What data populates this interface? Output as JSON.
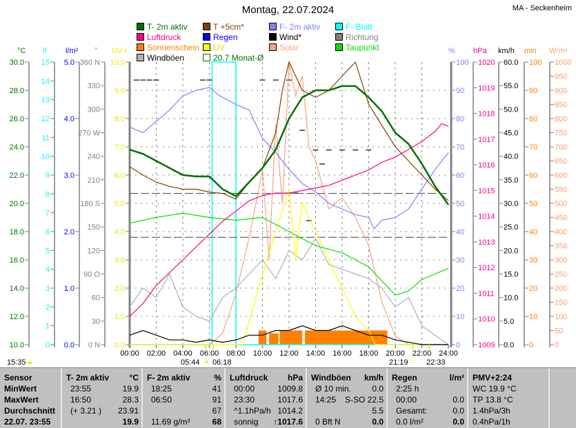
{
  "header": {
    "title": "Montag, 22.07.2024",
    "station": "MA - Seckenheim"
  },
  "legend": [
    {
      "label": "T- 2m aktiv",
      "color": "#007000"
    },
    {
      "label": "T +5cm*",
      "color": "#804000"
    },
    {
      "label": "F- 2m aktiv",
      "color": "#8080ff"
    },
    {
      "label": "F- Blatt",
      "color": "#00ffff"
    },
    {
      "label": "Luftdruck",
      "color": "#ff0080"
    },
    {
      "label": "Regen",
      "color": "#0000ff"
    },
    {
      "label": "Wind*",
      "color": "#000000"
    },
    {
      "label": "Richtung",
      "color": "#808080"
    },
    {
      "label": "Sonnenschein",
      "color": "#ff8000"
    },
    {
      "label": "UV",
      "color": "#ffff00"
    },
    {
      "label": "Solar",
      "color": "#ffa080"
    },
    {
      "label": "Taupunkt",
      "color": "#00e000"
    },
    {
      "label": "Windböen",
      "color": "#b0b0b0"
    },
    {
      "label": "20.7 Monat-Ø",
      "color": "#007000"
    }
  ],
  "chart_data": {
    "type": "line",
    "x_axis": {
      "range": [
        0,
        24
      ],
      "unit": "h",
      "tick_labels": [
        "00:00",
        "02:00",
        "04:00",
        "06:00",
        "08:00",
        "10:00",
        "12:00",
        "14:00",
        "16:00",
        "18:00",
        "20:00",
        "22:00",
        "24:00"
      ]
    },
    "grid": true,
    "axes": {
      "temp": {
        "unit": "°C",
        "color": "#007000",
        "range": [
          10,
          30
        ],
        "tick_labels": [
          "10.0",
          "12.0",
          "14.0",
          "16.0",
          "18.0",
          "20.0",
          "22.0",
          "24.0",
          "26.0",
          "28.0",
          "30.0"
        ]
      },
      "lf": {
        "unit": "lf",
        "color": "#00ffff",
        "range": [
          0,
          15
        ],
        "tick_labels": [
          "0",
          "1",
          "2",
          "3",
          "4",
          "5",
          "6",
          "7",
          "8",
          "9",
          "10",
          "11",
          "12",
          "13",
          "14",
          "15"
        ]
      },
      "rain": {
        "unit": "l/m²",
        "color": "#0000ff",
        "range": [
          0,
          5
        ],
        "tick_labels": [
          "0.0",
          "1.0",
          "2.0",
          "3.0",
          "4.0",
          "5.0"
        ]
      },
      "dir": {
        "unit": "°",
        "color": "#808080",
        "range": [
          0,
          360
        ],
        "tick_labels": [
          "0 N",
          "30",
          "60",
          "90 O",
          "120",
          "150",
          "180 S",
          "210",
          "240",
          "270 W",
          "300",
          "330",
          "360 N"
        ]
      },
      "uv": {
        "unit": "UV-I",
        "color": "#ffff00",
        "range": [
          0,
          10
        ],
        "tick_labels": [
          "0.0",
          "1.0",
          "2.0",
          "3.0",
          "4.0",
          "5.0",
          "6.0",
          "7.0",
          "8.0",
          "9.0",
          "10.0"
        ]
      },
      "hum": {
        "unit": "%",
        "color": "#8080ff",
        "range": [
          0,
          100
        ],
        "tick_labels": [
          "0",
          "10",
          "20",
          "30",
          "40",
          "50",
          "60",
          "70",
          "80",
          "90",
          "100"
        ]
      },
      "press": {
        "unit": "hPa",
        "color": "#ff0080",
        "range": [
          1009,
          1020
        ],
        "tick_labels": [
          "1009",
          "1010",
          "1011",
          "1012",
          "1013",
          "1014",
          "1015",
          "1016",
          "1017",
          "1018",
          "1019",
          "1020"
        ]
      },
      "wind": {
        "unit": "km/h",
        "color": "#000000",
        "range": [
          0,
          60
        ],
        "tick_labels": [
          "0.0",
          "5.0",
          "10.0",
          "15.0",
          "20.0",
          "25.0",
          "30.0",
          "35.0",
          "40.0",
          "45.0",
          "50.0",
          "55.0",
          "60.0"
        ]
      },
      "sun": {
        "unit": "min",
        "color": "#ff8000",
        "range": [
          0,
          100
        ],
        "tick_labels": [
          "0",
          "10",
          "20",
          "30",
          "40",
          "50",
          "60",
          "70",
          "80",
          "90",
          "100"
        ]
      },
      "solar": {
        "unit": "W/m²",
        "color": "#ffa080",
        "range": [
          0,
          1000
        ],
        "tick_labels": [
          "0",
          "50",
          "100",
          "150",
          "200",
          "250",
          "300",
          "350",
          "400",
          "450",
          "500",
          "550",
          "600",
          "650",
          "700",
          "750",
          "800",
          "850",
          "900",
          "950",
          "1000"
        ]
      }
    },
    "series": [
      {
        "name": "Solar",
        "axis": "solar",
        "color": "#ffa080",
        "x": [
          0,
          6,
          7,
          8,
          9,
          10,
          10.5,
          11,
          11.5,
          12,
          12.5,
          13,
          13.5,
          14,
          15,
          16,
          17,
          18,
          19,
          20,
          21,
          24
        ],
        "y": [
          0,
          0,
          40,
          180,
          380,
          620,
          300,
          780,
          500,
          1000,
          880,
          950,
          700,
          650,
          480,
          520,
          450,
          350,
          150,
          30,
          0,
          0
        ]
      },
      {
        "name": "Windböen",
        "axis": "wind",
        "color": "#b0b0b0",
        "x": [
          0,
          1,
          2,
          3,
          4,
          5,
          6,
          7,
          8,
          9,
          10,
          11,
          12,
          13,
          14,
          15,
          16,
          17,
          18,
          19,
          20,
          21,
          22,
          23,
          24
        ],
        "y": [
          8,
          12,
          10,
          15,
          8,
          6,
          5,
          10,
          12,
          15,
          18,
          14,
          20,
          18,
          22.5,
          17,
          16,
          15,
          14,
          12,
          8,
          10,
          4,
          2,
          0
        ]
      },
      {
        "name": "UV",
        "axis": "uv",
        "color": "#ffff00",
        "x": [
          0,
          8.5,
          9,
          10,
          11,
          12,
          12.5,
          13,
          14,
          15,
          16,
          17,
          18,
          18.5,
          24
        ],
        "y": [
          0,
          0,
          0.8,
          2.5,
          4,
          5.5,
          3,
          5,
          4,
          3,
          2,
          1,
          0.5,
          0,
          0
        ]
      },
      {
        "name": "Wind*",
        "axis": "wind",
        "color": "#000000",
        "x": [
          0,
          1,
          2,
          3,
          4,
          5,
          6,
          7,
          8,
          9,
          10,
          11,
          12,
          13,
          14,
          15,
          16,
          17,
          18,
          19,
          20,
          21,
          22,
          23,
          24
        ],
        "y": [
          2,
          3,
          2,
          1,
          1,
          0.5,
          1,
          0.5,
          1,
          2,
          2,
          3,
          3,
          4,
          3,
          3,
          4,
          3,
          2,
          2,
          1,
          0.5,
          0,
          0,
          0
        ]
      },
      {
        "name": "Taupunkt",
        "axis": "temp",
        "color": "#00e000",
        "x": [
          0,
          2,
          4,
          6,
          8,
          10,
          11,
          12,
          14,
          16,
          18,
          19,
          20,
          21,
          22,
          23,
          24
        ],
        "y": [
          18.6,
          19,
          19.3,
          19,
          18.8,
          19,
          18.5,
          18,
          17,
          16.5,
          15.5,
          14.5,
          13.5,
          13.8,
          14.6,
          15,
          15.4
        ]
      },
      {
        "name": "F- 2m aktiv",
        "axis": "hum",
        "color": "#8080ff",
        "x": [
          0,
          1,
          2,
          3,
          4,
          5,
          6,
          6.8,
          8,
          9,
          10,
          11,
          12,
          13,
          14,
          15,
          16,
          17,
          18,
          18.4,
          19,
          20,
          21,
          22,
          23,
          24
        ],
        "y": [
          77,
          75,
          79,
          83,
          88,
          90,
          91,
          88,
          85,
          83,
          73,
          68,
          62,
          57,
          54,
          50,
          48,
          46,
          45,
          41,
          44,
          45,
          48,
          55,
          62,
          68
        ]
      },
      {
        "name": "Luftdruck",
        "axis": "press",
        "color": "#ff0080",
        "x": [
          0,
          1,
          2,
          3,
          4,
          5,
          6,
          7,
          8,
          9,
          10,
          11,
          12,
          13,
          14,
          15,
          16,
          17,
          18,
          19,
          20,
          21,
          22,
          23,
          23.5,
          24
        ],
        "y": [
          1010.1,
          1010.6,
          1011.3,
          1011.8,
          1012.3,
          1012.8,
          1013.3,
          1013.8,
          1014.2,
          1014.6,
          1014.8,
          1014.9,
          1014.9,
          1015,
          1015.1,
          1015.2,
          1015.4,
          1015.6,
          1015.8,
          1016.1,
          1016.3,
          1016.6,
          1016.9,
          1017.3,
          1017.6,
          1017.5
        ]
      },
      {
        "name": "T +5cm*",
        "axis": "temp",
        "color": "#804000",
        "x": [
          0,
          1,
          2,
          3,
          4,
          5,
          6,
          7,
          8,
          9,
          10,
          11,
          11.5,
          12,
          13,
          14,
          15,
          16,
          17,
          18,
          19,
          20,
          21,
          22,
          23,
          24
        ],
        "y": [
          22.6,
          22,
          21.5,
          21.2,
          21,
          21,
          20.8,
          20.7,
          20.3,
          21.5,
          22.5,
          25,
          28,
          30,
          28,
          27.5,
          28,
          29,
          30,
          27,
          25.5,
          24,
          23,
          22,
          21,
          20.2
        ]
      },
      {
        "name": "T- 2m aktiv",
        "axis": "temp",
        "color": "#007000",
        "width": 2.5,
        "x": [
          0,
          1,
          2,
          3,
          4,
          5,
          6,
          7,
          8,
          9,
          10,
          11,
          12,
          13,
          14,
          15,
          16,
          17,
          18,
          19,
          20,
          21,
          22,
          23,
          24
        ],
        "y": [
          23.8,
          23.5,
          23,
          22.5,
          22,
          21.9,
          21.9,
          21,
          20.5,
          21.5,
          22.5,
          23.8,
          26,
          27.5,
          28,
          28,
          28.3,
          28.3,
          27.5,
          26.5,
          25,
          24.2,
          22.8,
          21.2,
          19.9
        ]
      }
    ],
    "wind_direction": {
      "axis": "dir",
      "x": [
        0.5,
        1,
        1.5,
        2,
        5.5,
        6,
        10,
        11,
        12,
        13,
        14,
        15,
        16,
        17,
        18,
        12.5,
        13.5,
        14.5
      ],
      "y": [
        337,
        337,
        337,
        337,
        337,
        337,
        337,
        337,
        337,
        273,
        248,
        248,
        248,
        248,
        248,
        193,
        158,
        230
      ]
    },
    "sunshine": {
      "axis": "sun",
      "intervals": [
        [
          9.7,
          10.3,
          5
        ],
        [
          10.5,
          11.2,
          4
        ],
        [
          11.3,
          13.0,
          5
        ],
        [
          13.2,
          19.4,
          5
        ]
      ]
    },
    "leaf_wetness": {
      "axis": "lf",
      "x": [
        0,
        6.2,
        6.2,
        8.0,
        8.0,
        24
      ],
      "y": [
        0,
        0,
        15,
        15,
        0,
        0
      ]
    },
    "reference_lines": [
      {
        "label": "20.7 Monat-Ø",
        "axis": "temp",
        "value": 20.7
      },
      {
        "axis": "temp",
        "value": 17.6
      }
    ],
    "sun_times": {
      "left": "15:35",
      "sunrise": "05:44",
      "sunrise2": "06:18",
      "sunset": "21:19",
      "sunset2": "22:33"
    }
  },
  "table": {
    "columns": [
      {
        "h": "Sensor",
        "u": "",
        "rows": [
          [
            "MinWert",
            ""
          ],
          [
            "MaxWert",
            ""
          ],
          [
            "Durchschnitt",
            ""
          ],
          [
            "22.07. 23:55",
            ""
          ]
        ],
        "bold_label": true
      },
      {
        "h": "T- 2m aktiv",
        "u": "°C",
        "rows": [
          [
            "23:55",
            "19.9"
          ],
          [
            "16:50",
            "28.3"
          ],
          [
            "(+ 3.21 )",
            "23.91"
          ],
          [
            "",
            "19.9"
          ]
        ]
      },
      {
        "h": "F- 2m aktiv",
        "u": "%",
        "rows": [
          [
            "18:25",
            "41"
          ],
          [
            "06:50",
            "91"
          ],
          [
            "",
            "67"
          ],
          [
            "11.69 g/m³",
            "68"
          ]
        ]
      },
      {
        "h": "Luftdruck",
        "u": "hPa",
        "rows": [
          [
            "00:00",
            "1009.8"
          ],
          [
            "23:30",
            "1017.6"
          ],
          [
            "^1.1hPa/h",
            "1014.2"
          ],
          [
            "sonnig",
            "↑1017.6"
          ]
        ]
      },
      {
        "h": "Windböen",
        "u": "km/h",
        "rows": [
          [
            "Ø 10 min.",
            "0.0"
          ],
          [
            "14:25",
            "S-SO 22.5"
          ],
          [
            "",
            "5.5"
          ],
          [
            "0 Bft N",
            "0.0"
          ]
        ]
      },
      {
        "h": "Regen",
        "u": "l/m²",
        "rows": [
          [
            "2:25 h",
            ""
          ],
          [
            "00:00",
            "0.0"
          ],
          [
            "Gesamt:",
            "0.0"
          ],
          [
            "0.0 l/m²",
            "0.0"
          ]
        ]
      },
      {
        "h": "PMV+2:24",
        "u": "",
        "rows": [
          [
            "WC 19.9 °C",
            ""
          ],
          [
            "TP 13.8 °C",
            ""
          ],
          [
            "1.4hPa/3h",
            ""
          ],
          [
            "0.4hPa/1h",
            ""
          ]
        ]
      },
      {
        "h": "",
        "u": "",
        "rows": []
      }
    ]
  }
}
